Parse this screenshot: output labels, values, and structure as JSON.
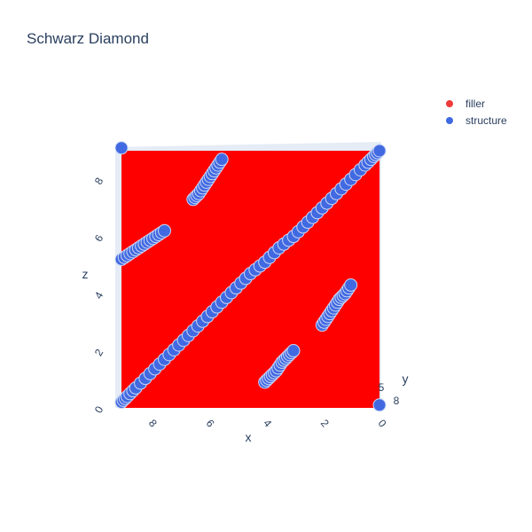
{
  "chart_data": {
    "type": "scatter3d",
    "title": "Schwarz Diamond",
    "legend_position": "top-right",
    "axes": {
      "x": {
        "label": "x",
        "range": [
          0,
          9
        ],
        "ticks": [
          "8",
          "6",
          "4",
          "2",
          "0"
        ]
      },
      "y": {
        "label": "y",
        "range": [
          0,
          9
        ],
        "ticks": [
          "8",
          "5"
        ]
      },
      "z": {
        "label": "z",
        "range": [
          0,
          9
        ],
        "ticks": [
          "0",
          "2",
          "4",
          "6",
          "8"
        ]
      }
    },
    "series": [
      {
        "name": "filler",
        "color": "#ff0000",
        "legend_color": "#ef3b3b",
        "x_range": [
          0,
          9
        ],
        "z_range": [
          0,
          9
        ]
      },
      {
        "name": "structure",
        "color": "#4169e1",
        "x": [
          9,
          8.8,
          8.5,
          8,
          7.5,
          7,
          6.5,
          6,
          5.5,
          5,
          4.5,
          4,
          3.5,
          3,
          2.5,
          2,
          1.5,
          1,
          0.5,
          0.2,
          0,
          9,
          8.7,
          8.4,
          8.1,
          7.8,
          7.5,
          6.5,
          6.3,
          6.1,
          5.9,
          5.7,
          5.5,
          4,
          3.8,
          3.6,
          3.4,
          3.2,
          3,
          2,
          1.8,
          1.6,
          1.4,
          1.2,
          1,
          9,
          0
        ],
        "z": [
          0.2,
          0.4,
          0.7,
          1.2,
          1.7,
          2.2,
          2.7,
          3.2,
          3.7,
          4.2,
          4.7,
          5.1,
          5.6,
          6.0,
          6.5,
          7.0,
          7.5,
          8.0,
          8.5,
          8.8,
          9,
          5.2,
          5.4,
          5.6,
          5.8,
          6.0,
          6.2,
          7.3,
          7.5,
          7.8,
          8.1,
          8.4,
          8.7,
          0.9,
          1.1,
          1.3,
          1.6,
          1.8,
          2.0,
          2.9,
          3.2,
          3.5,
          3.8,
          4.0,
          4.3,
          9.1,
          0.1
        ]
      }
    ]
  }
}
